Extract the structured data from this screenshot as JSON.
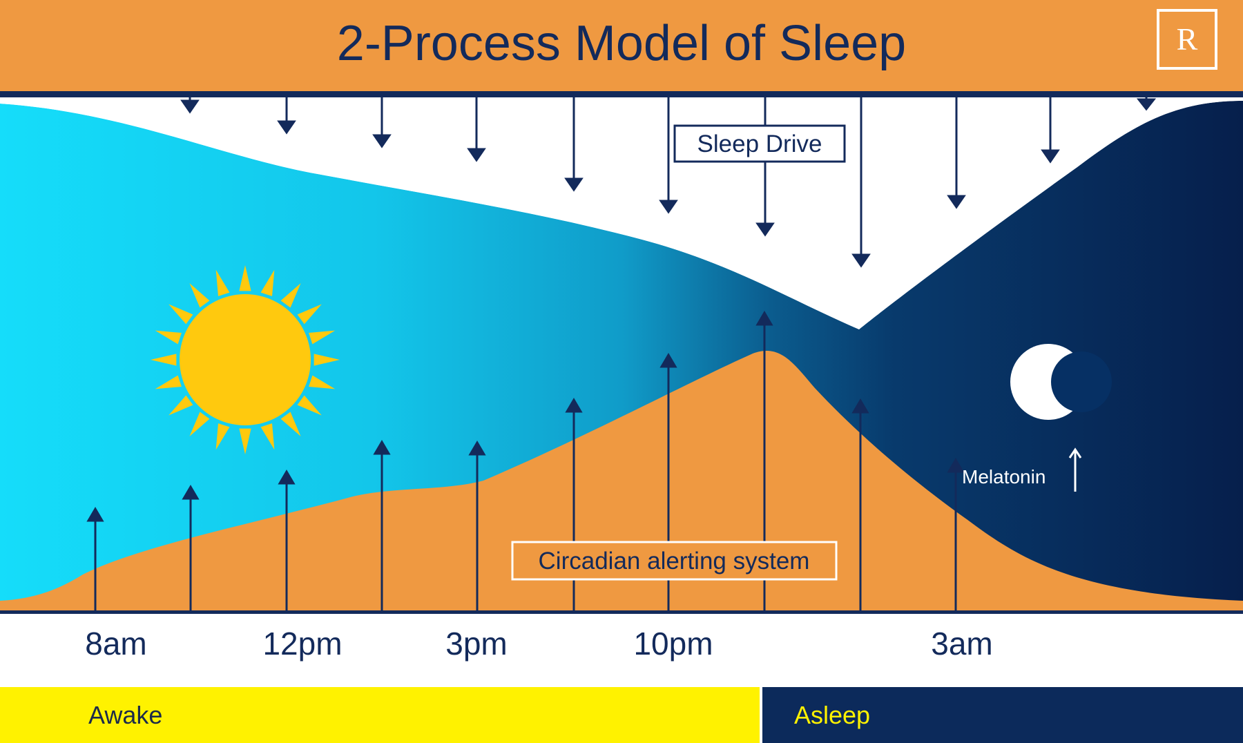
{
  "header": {
    "title": "2-Process Model of Sleep",
    "logo_letter": "R"
  },
  "labels": {
    "sleep_drive": "Sleep Drive",
    "circadian": "Circadian alerting system",
    "melatonin": "Melatonin"
  },
  "time_ticks": [
    "8am",
    "12pm",
    "3pm",
    "10pm",
    "3am"
  ],
  "states": {
    "awake": "Awake",
    "asleep": "Asleep"
  },
  "colors": {
    "header_orange": "#ef9941",
    "navy": "#132a5b",
    "day_cyan": "#15d8f7",
    "night_navy": "#0b2550",
    "sun_yellow": "#ffc90e",
    "awake_yellow": "#fff200"
  },
  "icons": {
    "sun": "sun-icon",
    "moon": "crescent-moon-icon"
  }
}
